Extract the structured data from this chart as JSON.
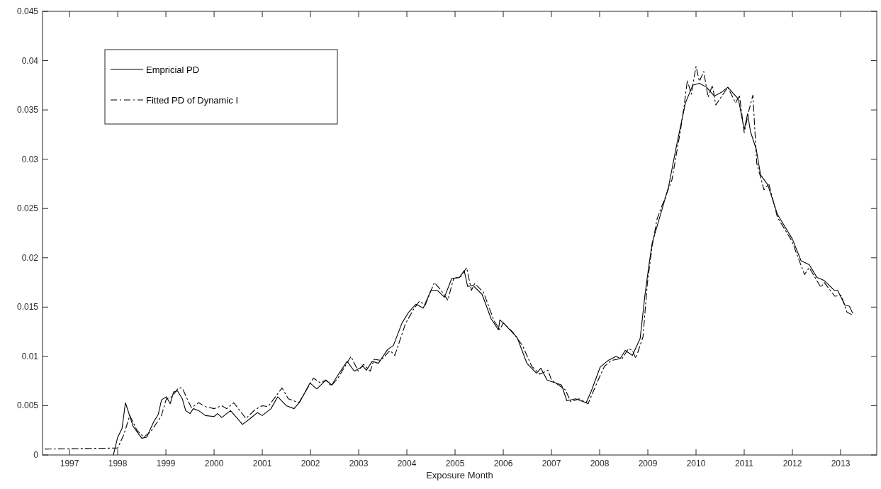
{
  "chart_data": {
    "type": "line",
    "xlabel": "Exposure Month",
    "xlim": [
      1996.44,
      2013.75
    ],
    "xticks": [
      1997,
      1998,
      1999,
      2000,
      2001,
      2002,
      2003,
      2004,
      2005,
      2006,
      2007,
      2008,
      2009,
      2010,
      2011,
      2012,
      2013
    ],
    "ylim": [
      0,
      0.045
    ],
    "yticks": [
      0,
      0.005,
      0.01,
      0.015,
      0.02,
      0.025,
      0.03,
      0.035,
      0.04,
      0.045
    ],
    "grid": false,
    "legend": "top left",
    "marker": "none",
    "series": [
      {
        "name": "Empricial PD",
        "color": "#000000",
        "line_style": "solid",
        "x": [
          1997.91,
          1998.0,
          1998.09,
          1998.16,
          1998.32,
          1998.5,
          1998.6,
          1998.75,
          1998.84,
          1998.91,
          1999.01,
          1999.09,
          1999.16,
          1999.24,
          1999.34,
          1999.41,
          1999.5,
          1999.57,
          1999.68,
          1999.82,
          2000.0,
          2000.07,
          2000.16,
          2000.34,
          2000.59,
          2000.75,
          2000.9,
          2001.0,
          2001.18,
          2001.32,
          2001.5,
          2001.66,
          2001.78,
          2001.99,
          2002.13,
          2002.32,
          2002.44,
          2002.57,
          2002.76,
          2002.91,
          2003.09,
          2003.16,
          2003.28,
          2003.41,
          2003.6,
          2003.72,
          2003.9,
          2004.04,
          2004.19,
          2004.34,
          2004.5,
          2004.63,
          2004.78,
          2004.93,
          2005.09,
          2005.19,
          2005.26,
          2005.37,
          2005.56,
          2005.75,
          2005.9,
          2005.93,
          2006.04,
          2006.29,
          2006.49,
          2006.69,
          2006.78,
          2006.91,
          2007.21,
          2007.32,
          2007.5,
          2007.72,
          2007.82,
          2008.01,
          2008.18,
          2008.34,
          2008.43,
          2008.53,
          2008.68,
          2008.84,
          2008.94,
          2009.01,
          2009.09,
          2009.24,
          2009.43,
          2009.6,
          2009.78,
          2009.93,
          2010.07,
          2010.22,
          2010.38,
          2010.53,
          2010.66,
          2010.88,
          2011.0,
          2011.07,
          2011.13,
          2011.25,
          2011.34,
          2011.49,
          2011.69,
          2012.0,
          2012.18,
          2012.35,
          2012.51,
          2012.66,
          2012.87,
          2012.94,
          2013.09,
          2013.18,
          2013.25
        ],
        "values": [
          0,
          0.0018,
          0.0027,
          0.0053,
          0.0029,
          0.0017,
          0.0018,
          0.0034,
          0.0041,
          0.0056,
          0.0059,
          0.0052,
          0.0064,
          0.0065,
          0.0057,
          0.0045,
          0.0042,
          0.0047,
          0.0045,
          0.004,
          0.0039,
          0.0042,
          0.0038,
          0.0045,
          0.0031,
          0.0037,
          0.0043,
          0.004,
          0.0047,
          0.0059,
          0.005,
          0.0047,
          0.0054,
          0.0073,
          0.0067,
          0.0076,
          0.0071,
          0.0081,
          0.0095,
          0.0085,
          0.009,
          0.0086,
          0.0095,
          0.0093,
          0.0107,
          0.0111,
          0.0134,
          0.0145,
          0.0153,
          0.0149,
          0.0167,
          0.0167,
          0.016,
          0.0179,
          0.018,
          0.0187,
          0.0171,
          0.0172,
          0.0163,
          0.0138,
          0.0127,
          0.0137,
          0.0132,
          0.0119,
          0.0093,
          0.0083,
          0.0088,
          0.0076,
          0.0071,
          0.0055,
          0.0057,
          0.0053,
          0.0064,
          0.0089,
          0.0096,
          0.01,
          0.0098,
          0.0106,
          0.0101,
          0.0118,
          0.0162,
          0.0188,
          0.0215,
          0.024,
          0.0272,
          0.0315,
          0.0357,
          0.0375,
          0.0377,
          0.0373,
          0.0364,
          0.0368,
          0.0373,
          0.0361,
          0.033,
          0.0346,
          0.0328,
          0.031,
          0.0284,
          0.0274,
          0.0244,
          0.0219,
          0.0197,
          0.0193,
          0.018,
          0.0177,
          0.0167,
          0.0167,
          0.0152,
          0.0151,
          0.0144
        ]
      },
      {
        "name": "Fitted PD of Dynamic I",
        "color": "#000000",
        "line_style": "dashed",
        "x": [
          1996.49,
          1997.91,
          1998.0,
          1998.13,
          1998.25,
          1998.4,
          1998.54,
          1998.69,
          1998.9,
          1999.01,
          1999.12,
          1999.26,
          1999.34,
          1999.43,
          1999.53,
          1999.68,
          1999.82,
          2000.0,
          2000.16,
          2000.26,
          2000.41,
          2000.66,
          2000.85,
          2001.0,
          2001.12,
          2001.41,
          2001.54,
          2001.76,
          2001.93,
          2002.06,
          2002.21,
          2002.32,
          2002.43,
          2002.57,
          2002.84,
          2002.99,
          2003.1,
          2003.24,
          2003.32,
          2003.46,
          2003.65,
          2003.75,
          2003.97,
          2004.13,
          2004.26,
          2004.38,
          2004.57,
          2004.71,
          2004.85,
          2004.97,
          2005.12,
          2005.24,
          2005.34,
          2005.41,
          2005.59,
          2005.81,
          2005.93,
          2006.0,
          2006.19,
          2006.4,
          2006.59,
          2006.76,
          2006.93,
          2007.0,
          2007.29,
          2007.4,
          2007.57,
          2007.76,
          2007.96,
          2008.1,
          2008.25,
          2008.47,
          2008.6,
          2008.68,
          2008.75,
          2008.9,
          2008.99,
          2009.09,
          2009.19,
          2009.28,
          2009.5,
          2009.68,
          2009.75,
          2009.82,
          2009.9,
          2010.0,
          2010.07,
          2010.16,
          2010.25,
          2010.34,
          2010.41,
          2010.66,
          2010.82,
          2010.9,
          2011.0,
          2011.1,
          2011.18,
          2011.26,
          2011.41,
          2011.51,
          2011.69,
          2011.99,
          2012.25,
          2012.35,
          2012.59,
          2012.66,
          2012.88,
          2013.01,
          2013.13,
          2013.24
        ],
        "values": [
          0.0006,
          0.0007,
          0.0007,
          0.0021,
          0.004,
          0.0025,
          0.0018,
          0.0024,
          0.0039,
          0.0057,
          0.0059,
          0.0068,
          0.0068,
          0.0058,
          0.0048,
          0.0053,
          0.0049,
          0.0047,
          0.005,
          0.0047,
          0.0053,
          0.0037,
          0.0046,
          0.005,
          0.0049,
          0.0068,
          0.0057,
          0.0053,
          0.0067,
          0.0078,
          0.0073,
          0.0076,
          0.007,
          0.0078,
          0.01,
          0.0085,
          0.0092,
          0.0085,
          0.0097,
          0.0096,
          0.0106,
          0.0101,
          0.0133,
          0.0147,
          0.0156,
          0.0152,
          0.0175,
          0.0167,
          0.0157,
          0.0179,
          0.0181,
          0.019,
          0.0167,
          0.0174,
          0.0165,
          0.0136,
          0.0127,
          0.0134,
          0.0125,
          0.0111,
          0.009,
          0.0082,
          0.0086,
          0.0076,
          0.0066,
          0.0054,
          0.0057,
          0.0052,
          0.0075,
          0.009,
          0.0096,
          0.0098,
          0.0108,
          0.0106,
          0.0098,
          0.012,
          0.0174,
          0.0212,
          0.0239,
          0.0251,
          0.0279,
          0.033,
          0.0353,
          0.038,
          0.0366,
          0.0394,
          0.0379,
          0.0389,
          0.0363,
          0.0375,
          0.0355,
          0.0373,
          0.0357,
          0.0365,
          0.0327,
          0.035,
          0.0365,
          0.0296,
          0.0269,
          0.0275,
          0.0241,
          0.0217,
          0.0183,
          0.019,
          0.017,
          0.0175,
          0.0161,
          0.0162,
          0.0145,
          0.0142
        ]
      }
    ]
  }
}
